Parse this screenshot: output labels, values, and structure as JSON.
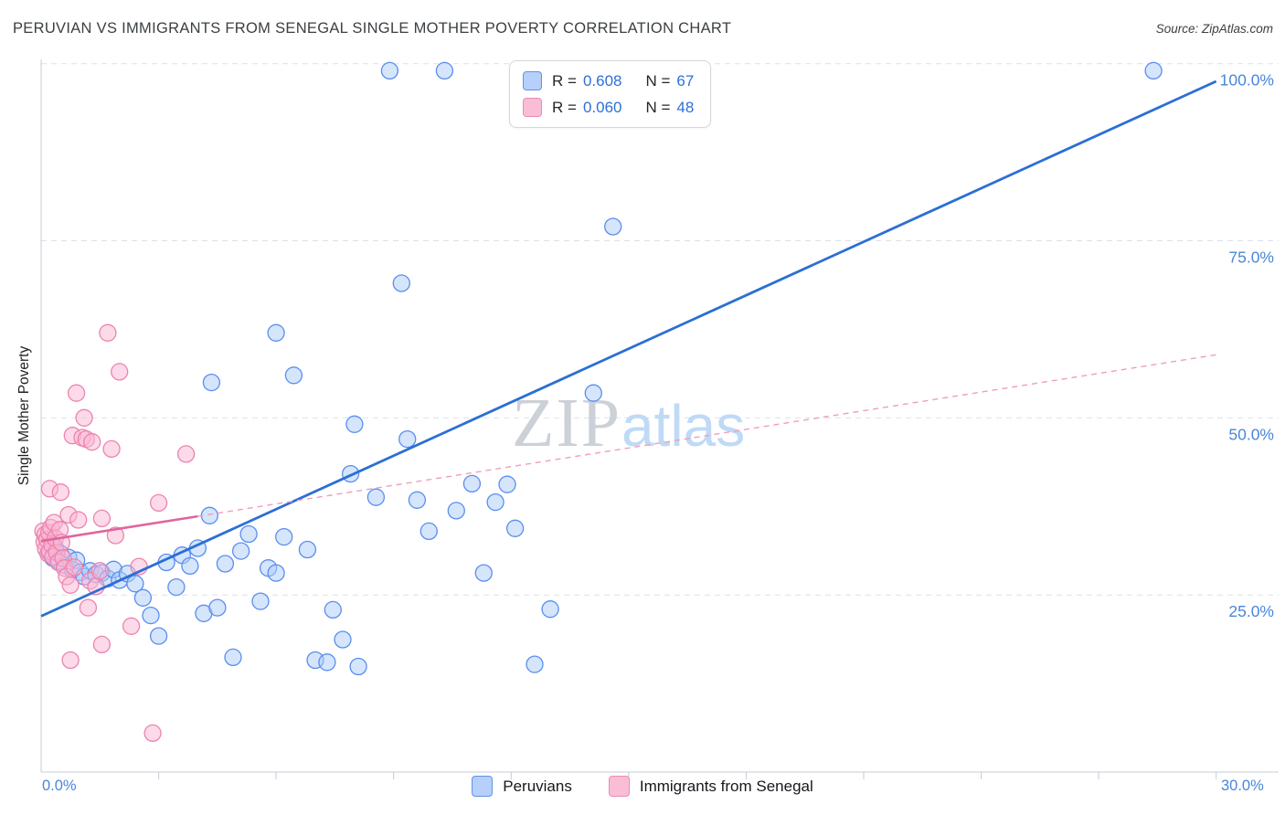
{
  "header": {
    "source": "Source: ZipAtlas.com"
  },
  "watermark": {
    "zip": "ZIP",
    "atlas": "atlas"
  },
  "axes": {
    "x_left_label": "0.0%",
    "x_right_label": "30.0%",
    "y_label": "Single Mother Poverty"
  },
  "stats_legend": {
    "rows": [
      {
        "series": "Peruvians",
        "r_label": "R =",
        "r_value": "0.608",
        "n_label": "N =",
        "n_value": "67",
        "swatch_fill": "#b6d0fb",
        "swatch_border": "#5f93e3"
      },
      {
        "series": "Immigrants from Senegal",
        "r_label": "R =",
        "r_value": "0.060",
        "n_label": "N =",
        "n_value": "48",
        "swatch_fill": "#f9bed6",
        "swatch_border": "#e98cb0"
      }
    ]
  },
  "bottom_legend": {
    "items": [
      {
        "label": "Peruvians",
        "swatch_fill": "#b6d0fb",
        "swatch_border": "#5f93e3"
      },
      {
        "label": "Immigrants from Senegal",
        "swatch_fill": "#f9bed6",
        "swatch_border": "#e98cb0"
      }
    ]
  },
  "chart_data": {
    "type": "scatter",
    "title": "PERUVIAN VS IMMIGRANTS FROM SENEGAL SINGLE MOTHER POVERTY CORRELATION CHART",
    "xlabel": "",
    "ylabel": "Single Mother Poverty",
    "xlim": [
      0,
      31.5
    ],
    "ylim": [
      0,
      100.6
    ],
    "x_axis_range_percent": [
      0,
      30
    ],
    "x_ticks": [
      3,
      6,
      9,
      12,
      15,
      18,
      21,
      24,
      27,
      30
    ],
    "y_ticks": [
      {
        "value": 100,
        "label": "100.0%"
      },
      {
        "value": 75,
        "label": "75.0%"
      },
      {
        "value": 50,
        "label": "50.0%"
      },
      {
        "value": 25,
        "label": "25.0%"
      }
    ],
    "grid": "horizontal-dashed",
    "legend_position": "bottom-center",
    "series": [
      {
        "name": "Peruvians",
        "R": 0.608,
        "N": 67,
        "point_fill": "rgba(171,203,250,0.5)",
        "point_stroke": "#5b8def",
        "points": [
          [
            0.2,
            31.0
          ],
          [
            0.3,
            30.2
          ],
          [
            0.35,
            31.8
          ],
          [
            0.45,
            29.8
          ],
          [
            0.5,
            30.8
          ],
          [
            0.6,
            29.2
          ],
          [
            0.7,
            30.3
          ],
          [
            0.8,
            28.6
          ],
          [
            0.9,
            29.9
          ],
          [
            1.0,
            28.2
          ],
          [
            1.1,
            27.6
          ],
          [
            1.25,
            28.4
          ],
          [
            1.4,
            27.9
          ],
          [
            1.55,
            28.1
          ],
          [
            1.7,
            27.3
          ],
          [
            1.85,
            28.6
          ],
          [
            2.0,
            27.1
          ],
          [
            2.2,
            28.0
          ],
          [
            2.4,
            26.6
          ],
          [
            2.6,
            24.6
          ],
          [
            2.8,
            22.1
          ],
          [
            3.0,
            19.2
          ],
          [
            3.2,
            29.6
          ],
          [
            3.45,
            26.1
          ],
          [
            3.6,
            30.6
          ],
          [
            3.8,
            29.1
          ],
          [
            4.0,
            31.6
          ],
          [
            4.15,
            22.4
          ],
          [
            4.3,
            36.2
          ],
          [
            4.5,
            23.2
          ],
          [
            4.7,
            29.4
          ],
          [
            4.9,
            16.2
          ],
          [
            5.1,
            31.2
          ],
          [
            5.3,
            33.6
          ],
          [
            5.6,
            24.1
          ],
          [
            5.8,
            28.8
          ],
          [
            6.0,
            28.1
          ],
          [
            6.2,
            33.2
          ],
          [
            6.8,
            31.4
          ],
          [
            7.0,
            15.8
          ],
          [
            7.3,
            15.5
          ],
          [
            7.45,
            22.9
          ],
          [
            7.7,
            18.7
          ],
          [
            7.9,
            42.1
          ],
          [
            8.1,
            14.9
          ],
          [
            4.35,
            55.0
          ],
          [
            6.0,
            62.0
          ],
          [
            6.45,
            56.0
          ],
          [
            8.0,
            49.1
          ],
          [
            8.55,
            38.8
          ],
          [
            8.9,
            99.0
          ],
          [
            9.2,
            69.0
          ],
          [
            9.35,
            47.0
          ],
          [
            9.6,
            38.4
          ],
          [
            9.9,
            34.0
          ],
          [
            10.3,
            99.0
          ],
          [
            10.6,
            36.9
          ],
          [
            11.0,
            40.7
          ],
          [
            11.3,
            28.1
          ],
          [
            11.6,
            38.1
          ],
          [
            11.9,
            40.6
          ],
          [
            12.1,
            34.4
          ],
          [
            12.6,
            15.2
          ],
          [
            14.1,
            53.5
          ],
          [
            14.6,
            77.0
          ],
          [
            28.4,
            99.0
          ],
          [
            13.0,
            23.0
          ]
        ]
      },
      {
        "name": "Immigrants from Senegal",
        "R": 0.06,
        "N": 48,
        "point_fill": "rgba(249,181,212,0.5)",
        "point_stroke": "#ec84ad",
        "points": [
          [
            0.05,
            34.0
          ],
          [
            0.08,
            32.5
          ],
          [
            0.1,
            33.5
          ],
          [
            0.12,
            31.5
          ],
          [
            0.15,
            32.8
          ],
          [
            0.18,
            30.8
          ],
          [
            0.2,
            33.8
          ],
          [
            0.22,
            31.2
          ],
          [
            0.25,
            34.5
          ],
          [
            0.28,
            32.0
          ],
          [
            0.3,
            30.4
          ],
          [
            0.33,
            35.2
          ],
          [
            0.36,
            33.0
          ],
          [
            0.4,
            31.0
          ],
          [
            0.44,
            29.6
          ],
          [
            0.48,
            34.2
          ],
          [
            0.52,
            32.4
          ],
          [
            0.56,
            30.2
          ],
          [
            0.6,
            28.8
          ],
          [
            0.65,
            27.6
          ],
          [
            0.22,
            40.0
          ],
          [
            0.5,
            39.5
          ],
          [
            0.7,
            36.3
          ],
          [
            0.75,
            26.4
          ],
          [
            0.8,
            47.5
          ],
          [
            0.85,
            28.9
          ],
          [
            0.9,
            53.5
          ],
          [
            0.95,
            35.6
          ],
          [
            0.75,
            15.8
          ],
          [
            1.05,
            47.2
          ],
          [
            1.1,
            50.0
          ],
          [
            1.15,
            47.0
          ],
          [
            1.2,
            23.2
          ],
          [
            1.25,
            27.0
          ],
          [
            1.3,
            46.6
          ],
          [
            1.4,
            26.2
          ],
          [
            1.5,
            28.4
          ],
          [
            1.55,
            18.0
          ],
          [
            1.7,
            62.0
          ],
          [
            1.8,
            45.6
          ],
          [
            1.9,
            33.4
          ],
          [
            2.0,
            56.5
          ],
          [
            2.3,
            20.6
          ],
          [
            2.5,
            29.0
          ],
          [
            2.85,
            5.5
          ],
          [
            3.0,
            38.0
          ],
          [
            3.7,
            44.9
          ],
          [
            1.55,
            35.8
          ]
        ]
      }
    ],
    "trend_lines": [
      {
        "series": "Peruvians",
        "style": "solid",
        "x1": 0,
        "y1": 22.0,
        "x2": 30,
        "y2": 97.5,
        "color": "#2b6fd4",
        "width": 2.8,
        "dash": null
      },
      {
        "series": "Immigrants from Senegal",
        "style": "solid",
        "x1": 0,
        "y1": 32.6,
        "x2": 4.0,
        "y2": 36.1,
        "color": "#e0659c",
        "width": 2.6,
        "dash": null
      },
      {
        "series": "Immigrants from Senegal",
        "style": "dashed",
        "x1": 4.0,
        "y1": 36.1,
        "x2": 30,
        "y2": 58.9,
        "color": "#ef9ebc",
        "width": 1.4,
        "dash": "6,5"
      }
    ]
  }
}
